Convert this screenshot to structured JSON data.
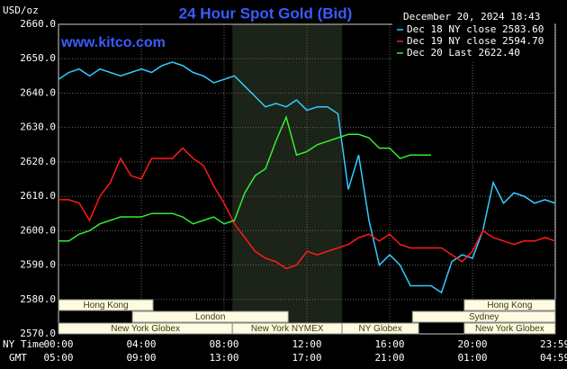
{
  "chart_data": {
    "type": "line",
    "title": "24 Hour Spot Gold (Bid)",
    "timestamp": "December 20, 2024 18:43",
    "website": "www.kitco.com",
    "y_label": "USD/oz",
    "x_time_zones": [
      "NY Time",
      "GMT"
    ],
    "xlim": [
      0,
      24
    ],
    "ylim": [
      2570,
      2660
    ],
    "xticks": [
      {
        "value": 0,
        "label": "00:00",
        "gmt_label": "05:00"
      },
      {
        "value": 4,
        "label": "04:00",
        "gmt_label": "09:00"
      },
      {
        "value": 8,
        "label": "08:00",
        "gmt_label": "13:00"
      },
      {
        "value": 12,
        "label": "12:00",
        "gmt_label": "17:00"
      },
      {
        "value": 16,
        "label": "16:00",
        "gmt_label": "21:00"
      },
      {
        "value": 20,
        "label": "20:00",
        "gmt_label": "01:00"
      },
      {
        "value": 23.98,
        "label": "23:59",
        "gmt_label": "04:59"
      }
    ],
    "yticks": [
      {
        "value": 2570,
        "label": "2570.0"
      },
      {
        "value": 2580,
        "label": "2580.0"
      },
      {
        "value": 2590,
        "label": "2590.0"
      },
      {
        "value": 2600,
        "label": "2600.0"
      },
      {
        "value": 2610,
        "label": "2610.0"
      },
      {
        "value": 2620,
        "label": "2620.0"
      },
      {
        "value": 2630,
        "label": "2630.0"
      },
      {
        "value": 2640,
        "label": "2640.0"
      },
      {
        "value": 2650,
        "label": "2650.0"
      },
      {
        "value": 2660,
        "label": "2660.0"
      }
    ],
    "grid": true,
    "shaded_session": [
      8.4,
      13.7
    ],
    "sessions": [
      {
        "label": "Hong Kong",
        "start": 0,
        "end": 4.57,
        "row": 0
      },
      {
        "label": "Hong Kong",
        "start": 19.6,
        "end": 24,
        "row": 0
      },
      {
        "label": "London",
        "start": 3.57,
        "end": 11.1,
        "row": 1
      },
      {
        "label": "Sydney",
        "start": 17.1,
        "end": 24,
        "row": 1
      },
      {
        "label": "New York Globex",
        "start": 0,
        "end": 8.4,
        "row": 2
      },
      {
        "label": "New York NYMEX",
        "start": 8.4,
        "end": 13.7,
        "row": 2
      },
      {
        "label": "NY Globex",
        "start": 13.7,
        "end": 17.4,
        "row": 2
      },
      {
        "label": "New York Globex",
        "start": 19.6,
        "end": 24,
        "row": 2
      }
    ],
    "x": [
      0,
      0.5,
      1,
      1.5,
      2,
      2.5,
      3,
      3.5,
      4,
      4.5,
      5,
      5.5,
      6,
      6.5,
      7,
      7.5,
      8,
      8.5,
      9,
      9.5,
      10,
      10.5,
      11,
      11.5,
      12,
      12.5,
      13,
      13.5,
      14,
      14.5,
      15,
      15.5,
      16,
      16.5,
      17,
      17.5,
      18,
      18.5,
      19,
      19.5,
      20,
      20.5,
      21,
      21.5,
      22,
      22.5,
      23,
      23.5,
      24
    ],
    "series": [
      {
        "name": "Dec 18 NY close 2583.60",
        "color": "#33ccff",
        "values": [
          2644,
          2646,
          2647,
          2645,
          2647,
          2646,
          2645,
          2646,
          2647,
          2646,
          2648,
          2649,
          2648,
          2646,
          2645,
          2643,
          2644,
          2645,
          2642,
          2639,
          2636,
          2637,
          2636,
          2638,
          2635,
          2636,
          2636,
          2634,
          2612,
          2622,
          2603,
          2590,
          2593,
          2590,
          2584,
          2584,
          2584,
          2582,
          2591,
          2593,
          2592,
          2600,
          2614,
          2608,
          2611,
          2610,
          2608,
          2609,
          2608
        ]
      },
      {
        "name": "Dec 19 NY close 2594.70",
        "color": "#ff1a1a",
        "values": [
          2609,
          2609,
          2608,
          2603,
          2610,
          2614,
          2621,
          2616,
          2615,
          2621,
          2621,
          2621,
          2624,
          2621,
          2619,
          2613,
          2608,
          2602,
          2598,
          2594,
          2592,
          2591,
          2589,
          2590,
          2594,
          2593,
          2594,
          2595,
          2596,
          2598,
          2599,
          2597,
          2599,
          2596,
          2595,
          2595,
          2595,
          2595,
          2593,
          2591,
          2594,
          2600,
          2598,
          2597,
          2596,
          2597,
          2597,
          2598,
          2597
        ]
      },
      {
        "name": "Dec 20 Last 2622.40",
        "color": "#33ee33",
        "values": [
          2597,
          2597,
          2599,
          2600,
          2602,
          2603,
          2604,
          2604,
          2604,
          2605,
          2605,
          2605,
          2604,
          2602,
          2603,
          2604,
          2602,
          2603,
          2611,
          2616,
          2618,
          2626,
          2633,
          2622,
          2623,
          2625,
          2626,
          2627,
          2628,
          2628,
          2627,
          2624,
          2624,
          2621,
          2622,
          2622,
          2622,
          null,
          null,
          null,
          null,
          null,
          null,
          null,
          null,
          null,
          null,
          null,
          null
        ]
      }
    ]
  }
}
